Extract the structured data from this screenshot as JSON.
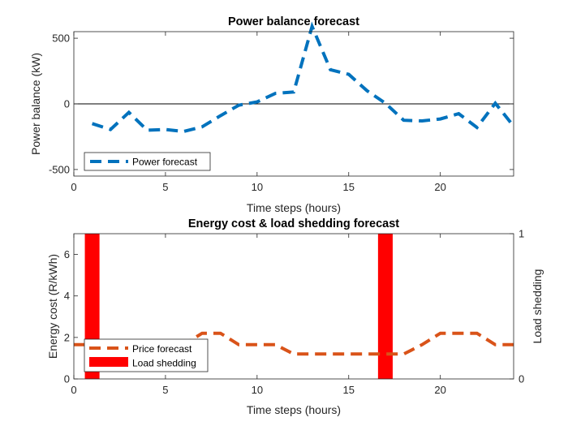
{
  "chart_data": [
    {
      "type": "line",
      "title": "Power balance forecast",
      "xlabel": "Time steps (hours)",
      "ylabel": "Power balance (kW)",
      "xlim": [
        0,
        24
      ],
      "ylim": [
        -550,
        550
      ],
      "xticks": [
        0,
        5,
        10,
        15,
        20
      ],
      "yticks": [
        -500,
        0,
        500
      ],
      "grid": false,
      "zero_line": true,
      "legend": "bottom-left",
      "series": [
        {
          "name": "Power forecast",
          "color": "#0072BD",
          "style": "dashed",
          "x": [
            1,
            2,
            3,
            4,
            5,
            6,
            7,
            8,
            9,
            10,
            11,
            12,
            13,
            14,
            15,
            16,
            17,
            18,
            19,
            20,
            21,
            22,
            23,
            24
          ],
          "y": [
            -150,
            -195,
            -65,
            -200,
            -195,
            -210,
            -175,
            -90,
            -10,
            15,
            80,
            90,
            590,
            260,
            225,
            100,
            5,
            -125,
            -130,
            -115,
            -75,
            -180,
            5,
            -170
          ]
        }
      ]
    },
    {
      "type": "line",
      "title": "Energy cost & load shedding forecast",
      "xlabel": "Time steps (hours)",
      "ylabel": "Energy cost (R/kWh)",
      "ylabel_right": "Load shedding",
      "xlim": [
        0,
        24
      ],
      "ylim": [
        0,
        7
      ],
      "ylim_right": [
        0,
        1
      ],
      "xticks": [
        0,
        5,
        10,
        15,
        20
      ],
      "yticks": [
        0,
        2,
        4,
        6
      ],
      "yticks_right": [
        0,
        1
      ],
      "grid": false,
      "legend": "bottom-left",
      "series": [
        {
          "name": "Price forecast",
          "color": "#D95319",
          "style": "dashed",
          "axis": "left",
          "x": [
            0,
            1,
            2,
            3,
            4,
            5,
            6,
            7,
            8,
            9,
            10,
            11,
            12,
            13,
            14,
            15,
            16,
            17,
            18,
            19,
            20,
            21,
            22,
            23,
            24
          ],
          "y": [
            1.65,
            1.65,
            1.65,
            1.65,
            1.65,
            1.65,
            1.65,
            2.2,
            2.2,
            1.65,
            1.65,
            1.65,
            1.2,
            1.2,
            1.2,
            1.2,
            1.2,
            1.2,
            1.2,
            1.65,
            2.2,
            2.2,
            2.2,
            1.65,
            1.65
          ]
        },
        {
          "name": "Load shedding",
          "color": "#FF0000",
          "type": "bar",
          "axis": "right",
          "x": [
            1,
            17
          ],
          "y": [
            1,
            1
          ],
          "bar_width": 0.8
        }
      ]
    }
  ]
}
